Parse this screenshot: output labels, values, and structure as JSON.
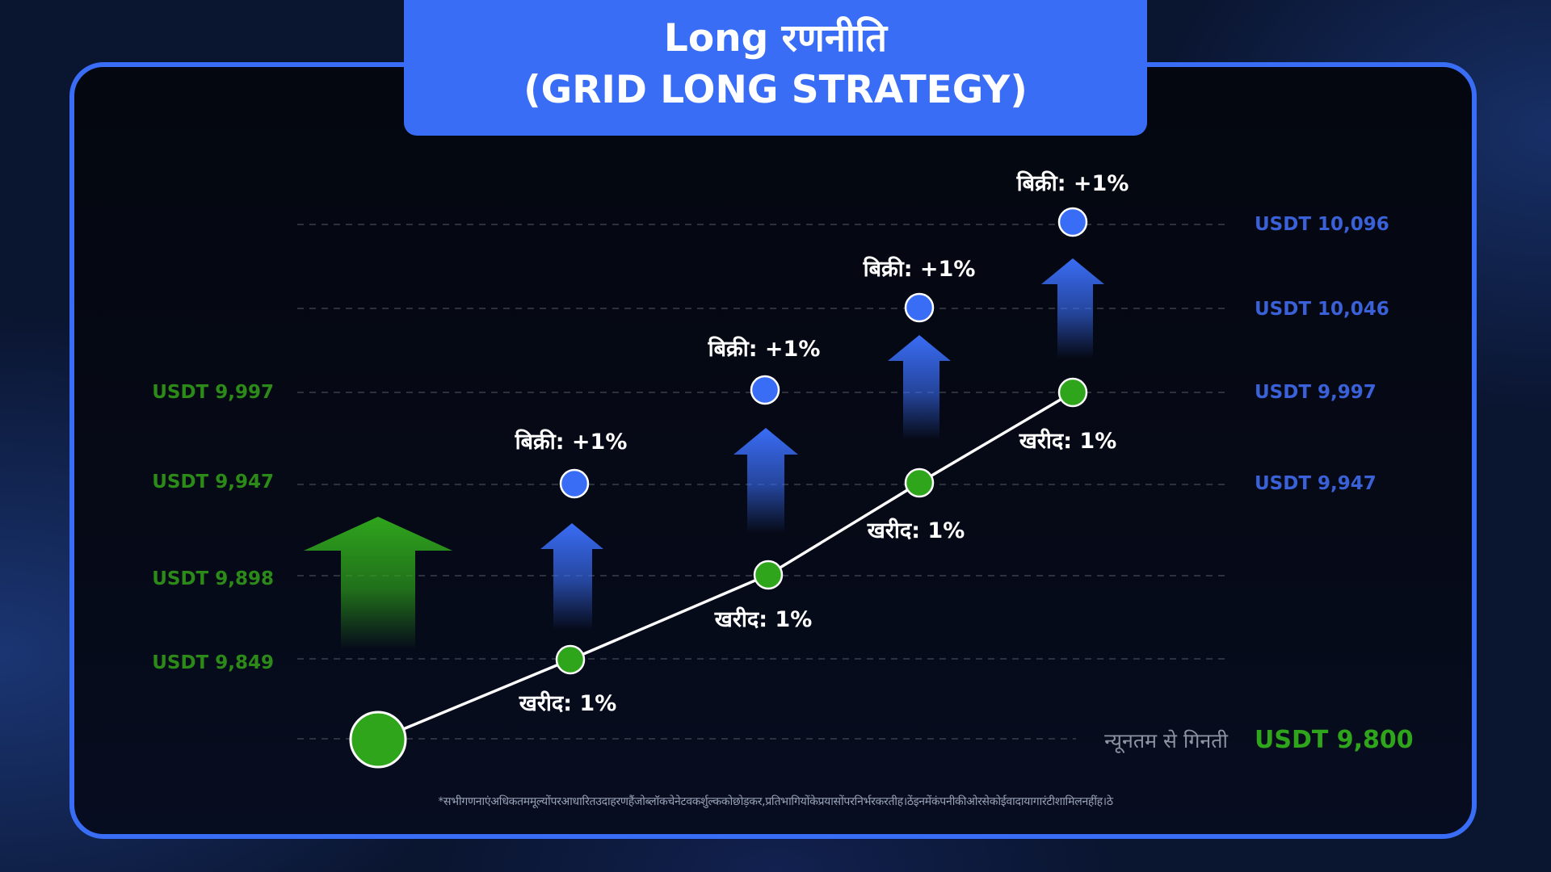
{
  "title": {
    "line1": "Long रणनीति",
    "line2": "(GRID LONG STRATEGY)"
  },
  "colors": {
    "accent_blue": "#3a6df5",
    "buy_green": "#2fa51c",
    "sell_blue": "#3a6df5",
    "left_label_green": "#2c8a18",
    "right_label_blue": "#3a61d8"
  },
  "levels": [
    {
      "label": "USDT 10,096",
      "side": "right"
    },
    {
      "label": "USDT 10,046",
      "side": "right"
    },
    {
      "label": "USDT 9,997",
      "side": "both"
    },
    {
      "label": "USDT 9,947",
      "side": "both"
    },
    {
      "label": "USDT 9,898",
      "side": "left"
    },
    {
      "label": "USDT 9,849",
      "side": "left"
    },
    {
      "label": "USDT 9,800",
      "side": "right-bottom"
    }
  ],
  "start_caption": "न्यूनतम से गिनती",
  "buy_points": [
    {
      "label": "खरीद: 1%",
      "level": "USDT 9,849"
    },
    {
      "label": "खरीद: 1%",
      "level": "USDT 9,898"
    },
    {
      "label": "खरीद: 1%",
      "level": "USDT 9,947"
    },
    {
      "label": "खरीद: 1%",
      "level": "USDT 9,997"
    }
  ],
  "sell_points": [
    {
      "label": "बिक्री: +1%",
      "level": "USDT 9,947"
    },
    {
      "label": "बिक्री: +1%",
      "level": "USDT 9,997"
    },
    {
      "label": "बिक्री: +1%",
      "level": "USDT 10,046"
    },
    {
      "label": "बिक्री: +1%",
      "level": "USDT 10,096"
    }
  ],
  "footnote": "*सभीगणनाएंअधिकतममूल्योंपरआधारितउदाहरणहैंजोब्लॉकचेनेटवकर्शुल्ककोछोड़कर,प्रतिभागियोंकेप्रयासोंपरनिर्भरकरतीह।ठेंइनमेंकंपनीकीओरसेकोईवादायागारंटीशामिलनहींह।ठे"
}
